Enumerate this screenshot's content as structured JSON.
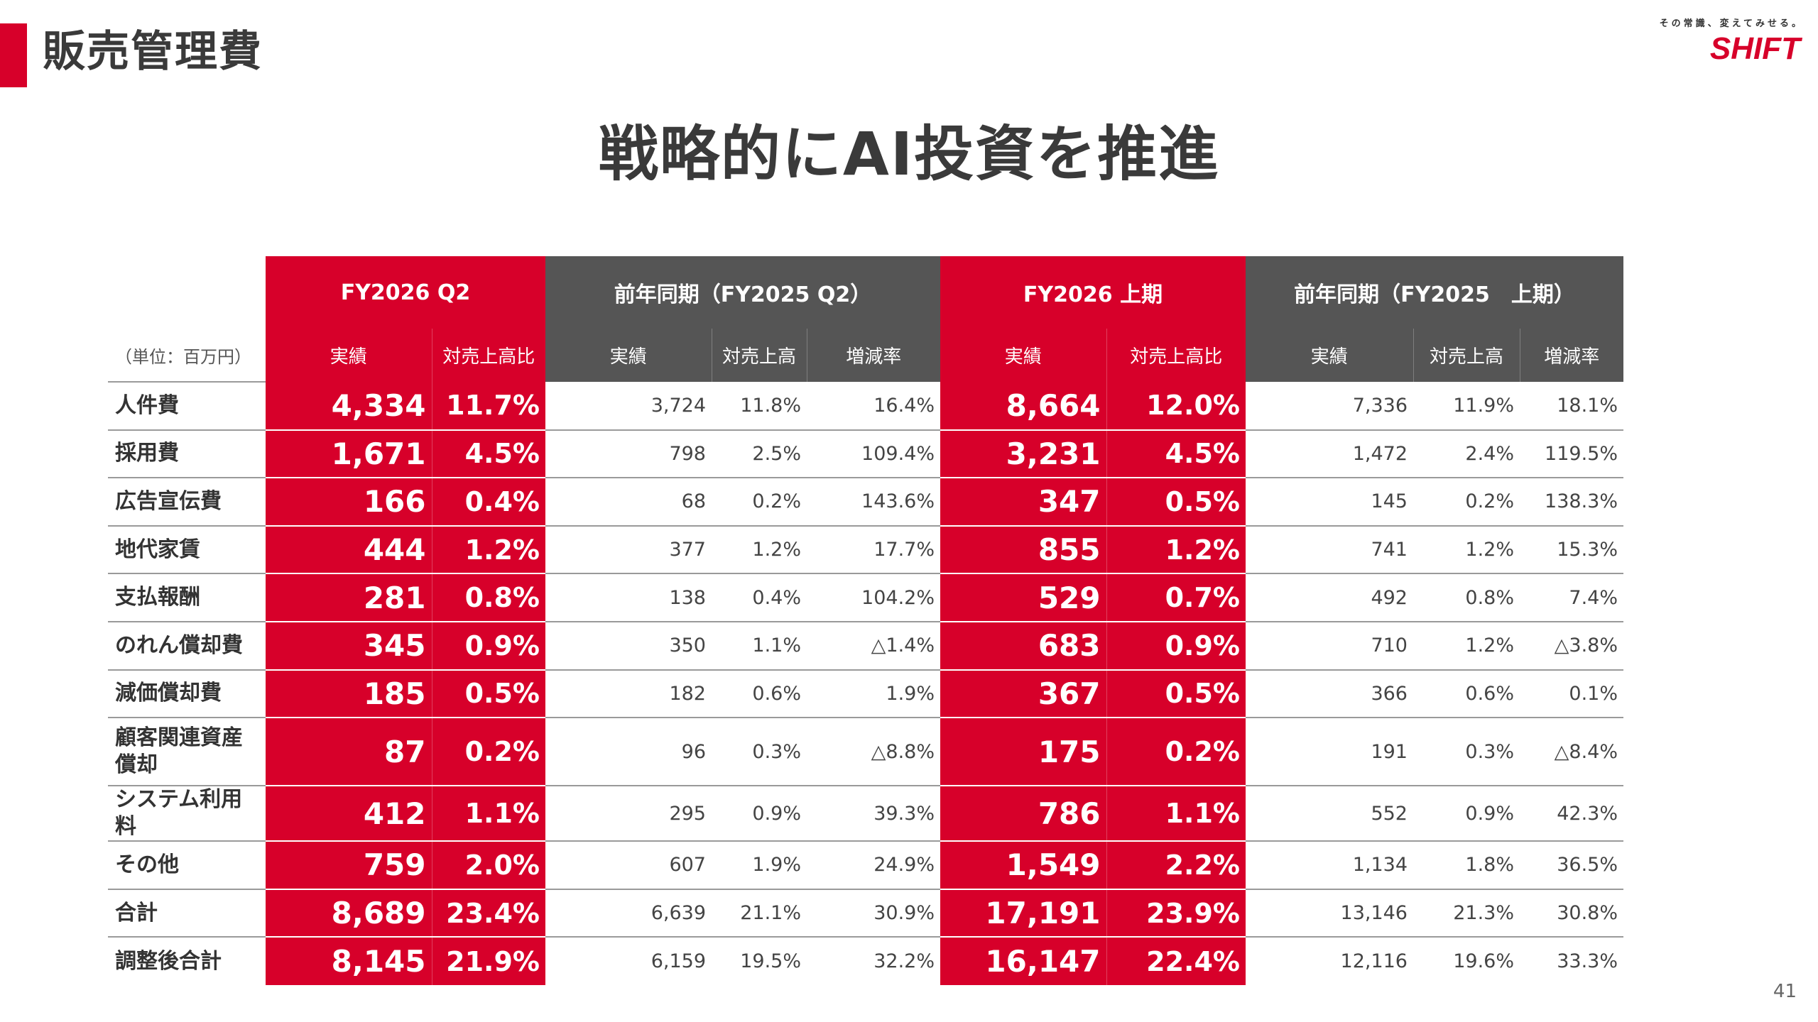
{
  "page": {
    "title": "販売管理費",
    "headline": "戦略的にAI投資を推進",
    "page_number": "41"
  },
  "logo": {
    "tagline": "その常識、変えてみせる。",
    "brand": "SHIFT",
    "color": "#d7002a"
  },
  "colors": {
    "accent": "#d7002a",
    "header_gray": "#555555"
  },
  "table": {
    "unit": "（単位：百万円）",
    "groups": [
      {
        "label": "FY2026 Q2"
      },
      {
        "label": "前年同期（FY2025 Q2）"
      },
      {
        "label": "FY2026 上期"
      },
      {
        "label": "前年同期（FY2025　上期）"
      }
    ],
    "subheaders": [
      "実績",
      "対売上高比",
      "実績",
      "対売上高",
      "増減率",
      "実績",
      "対売上高比",
      "実績",
      "対売上高",
      "増減率"
    ],
    "rows": [
      {
        "label": "人件費",
        "cells": [
          "4,334",
          "11.7%",
          "3,724",
          "11.8%",
          "16.4%",
          "8,664",
          "12.0%",
          "7,336",
          "11.9%",
          "18.1%"
        ]
      },
      {
        "label": "採用費",
        "cells": [
          "1,671",
          "4.5%",
          "798",
          "2.5%",
          "109.4%",
          "3,231",
          "4.5%",
          "1,472",
          "2.4%",
          "119.5%"
        ]
      },
      {
        "label": "広告宣伝費",
        "cells": [
          "166",
          "0.4%",
          "68",
          "0.2%",
          "143.6%",
          "347",
          "0.5%",
          "145",
          "0.2%",
          "138.3%"
        ]
      },
      {
        "label": "地代家賃",
        "cells": [
          "444",
          "1.2%",
          "377",
          "1.2%",
          "17.7%",
          "855",
          "1.2%",
          "741",
          "1.2%",
          "15.3%"
        ]
      },
      {
        "label": "支払報酬",
        "cells": [
          "281",
          "0.8%",
          "138",
          "0.4%",
          "104.2%",
          "529",
          "0.7%",
          "492",
          "0.8%",
          "7.4%"
        ]
      },
      {
        "label": "のれん償却費",
        "cells": [
          "345",
          "0.9%",
          "350",
          "1.1%",
          "△1.4%",
          "683",
          "0.9%",
          "710",
          "1.2%",
          "△3.8%"
        ]
      },
      {
        "label": "減価償却費",
        "cells": [
          "185",
          "0.5%",
          "182",
          "0.6%",
          "1.9%",
          "367",
          "0.5%",
          "366",
          "0.6%",
          "0.1%"
        ]
      },
      {
        "label": "顧客関連資産償却",
        "cells": [
          "87",
          "0.2%",
          "96",
          "0.3%",
          "△8.8%",
          "175",
          "0.2%",
          "191",
          "0.3%",
          "△8.4%"
        ]
      },
      {
        "label": "システム利用料",
        "cells": [
          "412",
          "1.1%",
          "295",
          "0.9%",
          "39.3%",
          "786",
          "1.1%",
          "552",
          "0.9%",
          "42.3%"
        ]
      },
      {
        "label": "その他",
        "cells": [
          "759",
          "2.0%",
          "607",
          "1.9%",
          "24.9%",
          "1,549",
          "2.2%",
          "1,134",
          "1.8%",
          "36.5%"
        ]
      },
      {
        "label": "合計",
        "cells": [
          "8,689",
          "23.4%",
          "6,639",
          "21.1%",
          "30.9%",
          "17,191",
          "23.9%",
          "13,146",
          "21.3%",
          "30.8%"
        ]
      },
      {
        "label": "調整後合計",
        "cells": [
          "8,145",
          "21.9%",
          "6,159",
          "19.5%",
          "32.2%",
          "16,147",
          "22.4%",
          "12,116",
          "19.6%",
          "33.3%"
        ]
      }
    ]
  }
}
